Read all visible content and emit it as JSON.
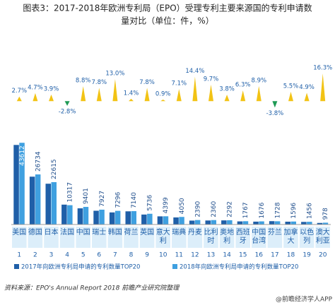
{
  "chart_data": {
    "type": "bar",
    "title": "图表3：2017-2018年欧洲专利局（EPO）受理专利主要来源国的专利申请数量对比（单位：件，%）",
    "categories": [
      "美国",
      "德国",
      "日本",
      "法国",
      "中国",
      "瑞士",
      "韩国",
      "荷兰",
      "英国",
      "意大利",
      "瑞典",
      "丹麦",
      "比利时",
      "奥地利",
      "西班牙",
      "中国台湾",
      "芬兰",
      "加拿大",
      "以色列",
      "澳大利亚"
    ],
    "ranks": [
      1,
      2,
      3,
      4,
      5,
      6,
      7,
      8,
      9,
      10,
      11,
      12,
      13,
      14,
      15,
      16,
      17,
      18,
      19,
      20
    ],
    "series": [
      {
        "name": "2017年向欧洲专利局申请的专利数量TOP20",
        "color": "#1f5fa8",
        "values": [
          42465,
          25534,
          21774,
          10614,
          8641,
          7353,
          6457,
          7042,
          5321,
          4360,
          3782,
          2089,
          2151,
          2208,
          1662,
          1539,
          1796,
          1513,
          1388,
          841
        ]
      },
      {
        "name": "2018年向欧洲专利局申请的专利数量TOP20",
        "color": "#3fa0e0",
        "values": [
          43612,
          26734,
          22615,
          10317,
          9401,
          7927,
          7296,
          7140,
          5736,
          4399,
          4050,
          2390,
          2360,
          2292,
          1767,
          1676,
          1728,
          1596,
          1456,
          978
        ]
      },
      {
        "name": "增长率",
        "axis": "y2",
        "up_color": "#f2c315",
        "down_color": "#1f9a55",
        "values": [
          2.7,
          4.7,
          3.9,
          -2.8,
          8.8,
          7.8,
          13.0,
          1.4,
          7.8,
          0.9,
          7.1,
          14.4,
          9.7,
          3.8,
          6.3,
          8.9,
          -3.8,
          5.5,
          4.9,
          16.3
        ],
        "value_labels": [
          "2.7%",
          "4.7%",
          "3.9%",
          "-2.8%",
          "8.8%",
          "7.8%",
          "13.0%",
          "1.4%",
          "7.8%",
          "0.9%",
          "7.1%",
          "14.4%",
          "9.7%",
          "3.8%",
          "6.3%",
          "8.9%",
          "-3.8%",
          "5.5%",
          "4.9%",
          "16.3%"
        ]
      }
    ],
    "ylim": [
      0,
      52000
    ],
    "y2lim": [
      -7,
      18
    ],
    "source": "资料来源：EPO's Annual Report 2018 前瞻产业研究院整理",
    "watermark": "@前瞻经济学人APP"
  }
}
